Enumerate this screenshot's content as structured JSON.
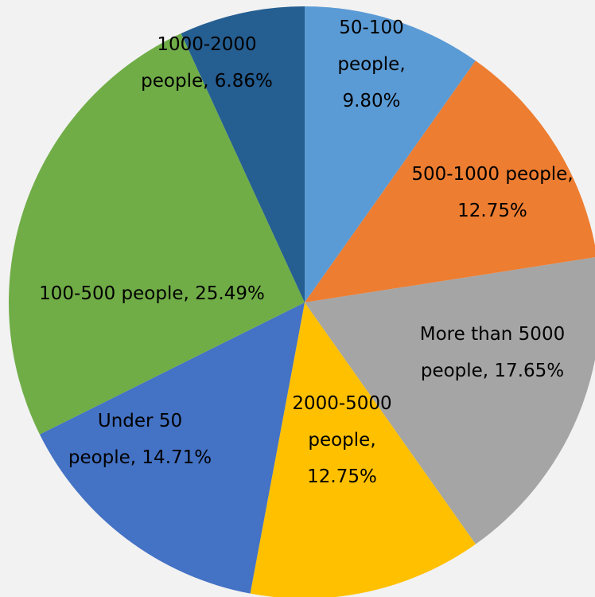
{
  "chart_data": {
    "type": "pie",
    "title": "",
    "start_angle_deg": 0,
    "direction": "clockwise",
    "slices": [
      {
        "name": "50-100 people",
        "value": 9.8,
        "color": "#5b9bd5",
        "label_lines": [
          "50-100",
          "people,",
          "9.80%"
        ]
      },
      {
        "name": "500-1000 people",
        "value": 12.75,
        "color": "#ed7d31",
        "label_lines": [
          "500-1000 people,",
          "12.75%"
        ]
      },
      {
        "name": "More than 5000 people",
        "value": 17.65,
        "color": "#a5a5a5",
        "label_lines": [
          "More than 5000",
          "people, 17.65%"
        ]
      },
      {
        "name": "2000-5000 people",
        "value": 12.75,
        "color": "#ffc000",
        "label_lines": [
          "2000-5000",
          "people,",
          "12.75%"
        ]
      },
      {
        "name": "Under 50 people",
        "value": 14.71,
        "color": "#4472c4",
        "label_lines": [
          "Under 50",
          "people, 14.71%"
        ]
      },
      {
        "name": "100-500 people",
        "value": 25.49,
        "color": "#70ad47",
        "label_lines": [
          "100-500 people, 25.49%"
        ]
      },
      {
        "name": "1000-2000 people",
        "value": 6.86,
        "color": "#255e91",
        "label_lines": [
          "1000-2000",
          "people, 6.86%"
        ]
      }
    ]
  }
}
